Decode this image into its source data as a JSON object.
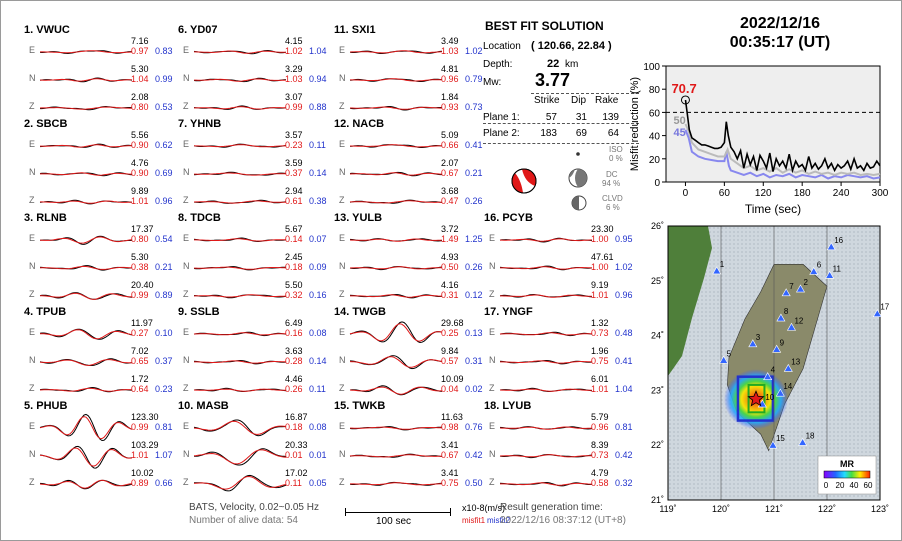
{
  "stations": [
    {
      "num": "1.",
      "code": "VWUC",
      "E": {
        "amp": "7.16",
        "m1": "0.97",
        "m2": "0.83"
      },
      "N": {
        "amp": "5.30",
        "m1": "1.04",
        "m2": "0.99"
      },
      "Z": {
        "amp": "2.08",
        "m1": "0.80",
        "m2": "0.53"
      }
    },
    {
      "num": "2.",
      "code": "SBCB",
      "E": {
        "amp": "5.56",
        "m1": "0.90",
        "m2": "0.62"
      },
      "N": {
        "amp": "4.76",
        "m1": "0.90",
        "m2": "0.69"
      },
      "Z": {
        "amp": "9.89",
        "m1": "1.01",
        "m2": "0.96"
      }
    },
    {
      "num": "3.",
      "code": "RLNB",
      "E": {
        "amp": "17.37",
        "m1": "0.80",
        "m2": "0.54"
      },
      "N": {
        "amp": "5.30",
        "m1": "0.38",
        "m2": "0.21"
      },
      "Z": {
        "amp": "20.40",
        "m1": "0.99",
        "m2": "0.89"
      }
    },
    {
      "num": "4.",
      "code": "TPUB",
      "E": {
        "amp": "11.97",
        "m1": "0.27",
        "m2": "0.10"
      },
      "N": {
        "amp": "7.02",
        "m1": "0.65",
        "m2": "0.37"
      },
      "Z": {
        "amp": "1.72",
        "m1": "0.64",
        "m2": "0.23"
      }
    },
    {
      "num": "5.",
      "code": "PHUB",
      "E": {
        "amp": "123.30",
        "m1": "0.99",
        "m2": "0.81"
      },
      "N": {
        "amp": "103.29",
        "m1": "1.01",
        "m2": "1.07"
      },
      "Z": {
        "amp": "10.02",
        "m1": "0.89",
        "m2": "0.66"
      }
    },
    {
      "num": "6.",
      "code": "YD07",
      "E": {
        "amp": "4.15",
        "m1": "1.02",
        "m2": "1.04"
      },
      "N": {
        "amp": "3.29",
        "m1": "1.03",
        "m2": "0.94"
      },
      "Z": {
        "amp": "3.07",
        "m1": "0.99",
        "m2": "0.88"
      }
    },
    {
      "num": "7.",
      "code": "YHNB",
      "E": {
        "amp": "3.57",
        "m1": "0.23",
        "m2": "0.11"
      },
      "N": {
        "amp": "3.59",
        "m1": "0.37",
        "m2": "0.14"
      },
      "Z": {
        "amp": "2.94",
        "m1": "0.61",
        "m2": "0.38"
      }
    },
    {
      "num": "8.",
      "code": "TDCB",
      "E": {
        "amp": "5.67",
        "m1": "0.14",
        "m2": "0.07"
      },
      "N": {
        "amp": "2.45",
        "m1": "0.18",
        "m2": "0.09"
      },
      "Z": {
        "amp": "5.50",
        "m1": "0.32",
        "m2": "0.16"
      }
    },
    {
      "num": "9.",
      "code": "SSLB",
      "E": {
        "amp": "6.49",
        "m1": "0.16",
        "m2": "0.08"
      },
      "N": {
        "amp": "3.63",
        "m1": "0.28",
        "m2": "0.14"
      },
      "Z": {
        "amp": "4.46",
        "m1": "0.26",
        "m2": "0.11"
      }
    },
    {
      "num": "10.",
      "code": "MASB",
      "E": {
        "amp": "16.87",
        "m1": "0.18",
        "m2": "0.08"
      },
      "N": {
        "amp": "20.33",
        "m1": "0.01",
        "m2": "0.01"
      },
      "Z": {
        "amp": "17.02",
        "m1": "0.11",
        "m2": "0.05"
      }
    },
    {
      "num": "11.",
      "code": "SXI1",
      "E": {
        "amp": "3.49",
        "m1": "1.03",
        "m2": "1.02"
      },
      "N": {
        "amp": "4.81",
        "m1": "0.96",
        "m2": "0.79"
      },
      "Z": {
        "amp": "1.84",
        "m1": "0.93",
        "m2": "0.73"
      }
    },
    {
      "num": "12.",
      "code": "NACB",
      "E": {
        "amp": "5.09",
        "m1": "0.66",
        "m2": "0.41"
      },
      "N": {
        "amp": "2.07",
        "m1": "0.67",
        "m2": "0.21"
      },
      "Z": {
        "amp": "3.68",
        "m1": "0.47",
        "m2": "0.26"
      }
    },
    {
      "num": "13.",
      "code": "YULB",
      "E": {
        "amp": "3.72",
        "m1": "1.49",
        "m2": "1.25"
      },
      "N": {
        "amp": "4.93",
        "m1": "0.50",
        "m2": "0.26"
      },
      "Z": {
        "amp": "4.16",
        "m1": "0.31",
        "m2": "0.12"
      }
    },
    {
      "num": "14.",
      "code": "TWGB",
      "E": {
        "amp": "29.68",
        "m1": "0.25",
        "m2": "0.13"
      },
      "N": {
        "amp": "9.84",
        "m1": "0.57",
        "m2": "0.31"
      },
      "Z": {
        "amp": "10.09",
        "m1": "0.04",
        "m2": "0.02"
      }
    },
    {
      "num": "15.",
      "code": "TWKB",
      "E": {
        "amp": "11.63",
        "m1": "0.98",
        "m2": "0.76"
      },
      "N": {
        "amp": "3.41",
        "m1": "0.67",
        "m2": "0.42"
      },
      "Z": {
        "amp": "3.41",
        "m1": "0.75",
        "m2": "0.50"
      }
    },
    {
      "num": "16.",
      "code": "PCYB",
      "E": {
        "amp": "23.30",
        "m1": "1.00",
        "m2": "0.95"
      },
      "N": {
        "amp": "47.61",
        "m1": "1.00",
        "m2": "1.02"
      },
      "Z": {
        "amp": "9.19",
        "m1": "1.01",
        "m2": "0.96"
      }
    },
    {
      "num": "17.",
      "code": "YNGF",
      "E": {
        "amp": "1.32",
        "m1": "0.73",
        "m2": "0.48"
      },
      "N": {
        "amp": "1.96",
        "m1": "0.75",
        "m2": "0.41"
      },
      "Z": {
        "amp": "6.01",
        "m1": "1.01",
        "m2": "1.04"
      }
    },
    {
      "num": "18.",
      "code": "LYUB",
      "E": {
        "amp": "5.79",
        "m1": "0.96",
        "m2": "0.81"
      },
      "N": {
        "amp": "8.39",
        "m1": "0.73",
        "m2": "0.42"
      },
      "Z": {
        "amp": "4.79",
        "m1": "0.58",
        "m2": "0.32"
      }
    }
  ],
  "components": [
    "E",
    "N",
    "Z"
  ],
  "solution": {
    "title": "BEST FIT SOLUTION",
    "location_label": "Location",
    "location_value": "( 120.66, 22.84 )",
    "depth_label": "Depth:",
    "depth_value": "22",
    "depth_unit": "km",
    "mw_label": "Mw:",
    "mw_value": "3.77",
    "headers": [
      "Strike",
      "Dip",
      "Rake"
    ],
    "plane1_label": "Plane 1:",
    "plane1": [
      "57",
      "31",
      "139"
    ],
    "plane2_label": "Plane 2:",
    "plane2": [
      "183",
      "69",
      "64"
    ],
    "iso_label": "ISO",
    "iso_value": "0 %",
    "dc_label": "DC",
    "dc_value": "94 %",
    "clvd_label": "CLVD",
    "clvd_value": "6 %"
  },
  "event": {
    "date": "2022/12/16",
    "time": "00:35:17  (UT)"
  },
  "chart_data": {
    "type": "line",
    "title": "",
    "xlabel": "Time (sec)",
    "ylabel": "Misfit reduction (%)",
    "xlim": [
      -30,
      300
    ],
    "ylim": [
      0,
      100
    ],
    "xticks": [
      0,
      60,
      120,
      180,
      240,
      300
    ],
    "yticks": [
      0,
      20,
      40,
      60,
      80,
      100
    ],
    "threshold": 60,
    "series": [
      {
        "color": "#000000",
        "x": [
          0,
          3,
          6,
          10,
          15,
          20,
          25,
          30,
          35,
          40,
          45,
          50,
          55,
          60,
          63,
          66,
          70,
          75,
          80,
          85,
          90,
          95,
          100,
          105,
          110,
          115,
          120,
          125,
          130,
          135,
          140,
          145,
          150,
          155,
          160,
          165,
          170,
          175,
          180,
          185,
          190,
          195,
          200,
          205,
          210,
          215,
          220,
          225,
          230,
          235,
          240,
          245,
          250,
          255,
          260,
          265,
          270,
          275,
          280,
          285,
          290,
          295,
          300
        ],
        "y": [
          70.7,
          58,
          45,
          38,
          36,
          34,
          32,
          32,
          31,
          30,
          29,
          29,
          30,
          34,
          52,
          40,
          30,
          26,
          20,
          27,
          12,
          24,
          15,
          22,
          10,
          23,
          18,
          12,
          25,
          9,
          20,
          14,
          18,
          12,
          24,
          10,
          18,
          13,
          15,
          10,
          22,
          12,
          16,
          11,
          14,
          20,
          12,
          16,
          10,
          15,
          12,
          14,
          18,
          11,
          20,
          12,
          14,
          10,
          16,
          12,
          13,
          18,
          14
        ]
      },
      {
        "color": "#bbbbbb",
        "x": [
          0,
          5,
          10,
          20,
          30,
          40,
          50,
          60,
          65,
          70,
          80,
          90,
          100,
          110,
          120,
          130,
          140,
          150,
          160,
          170,
          180,
          190,
          200,
          210,
          220,
          230,
          240,
          250,
          260,
          270,
          280,
          290,
          300
        ],
        "y": [
          50,
          44,
          34,
          28,
          26,
          24,
          22,
          22,
          28,
          20,
          16,
          12,
          14,
          10,
          12,
          9,
          12,
          8,
          11,
          8,
          10,
          7,
          9,
          7,
          8,
          6,
          8,
          7,
          8,
          6,
          7,
          6,
          7
        ]
      },
      {
        "color": "#8888ee",
        "x": [
          0,
          5,
          10,
          20,
          30,
          40,
          50,
          60,
          63,
          67,
          70,
          80,
          90,
          100,
          110,
          120,
          130,
          140,
          150,
          160,
          170,
          180,
          190,
          200,
          210,
          220,
          230,
          240,
          250,
          260,
          270,
          280,
          290,
          300
        ],
        "y": [
          45,
          38,
          26,
          22,
          20,
          19,
          18,
          18,
          26,
          14,
          10,
          8,
          6,
          8,
          5,
          7,
          4,
          6,
          5,
          7,
          4,
          6,
          5,
          4,
          6,
          3,
          5,
          4,
          6,
          5,
          4,
          5,
          3,
          4
        ]
      }
    ],
    "annotations": [
      {
        "text": "70.7",
        "x": 0,
        "y": 70.7,
        "color": "#e01818"
      },
      {
        "text": "50",
        "x": 0,
        "y": 50,
        "color": "#999999"
      },
      {
        "text": "45",
        "x": 0,
        "y": 45,
        "color": "#7777dd"
      }
    ]
  },
  "map": {
    "lon_ticks": [
      "119˚",
      "120˚",
      "121˚",
      "122˚",
      "123˚"
    ],
    "lat_ticks": [
      "21˚",
      "22˚",
      "23˚",
      "24˚",
      "25˚",
      "26˚"
    ],
    "stations": [
      {
        "id": "1",
        "lon": 119.92,
        "lat": 25.18
      },
      {
        "id": "2",
        "lon": 121.5,
        "lat": 24.85
      },
      {
        "id": "3",
        "lon": 120.6,
        "lat": 23.85
      },
      {
        "id": "4",
        "lon": 120.88,
        "lat": 23.25
      },
      {
        "id": "5",
        "lon": 120.05,
        "lat": 23.55
      },
      {
        "id": "6",
        "lon": 121.75,
        "lat": 25.17
      },
      {
        "id": "7",
        "lon": 121.23,
        "lat": 24.78
      },
      {
        "id": "8",
        "lon": 121.13,
        "lat": 24.32
      },
      {
        "id": "9",
        "lon": 121.05,
        "lat": 23.75
      },
      {
        "id": "10",
        "lon": 120.78,
        "lat": 22.75
      },
      {
        "id": "11",
        "lon": 122.05,
        "lat": 25.1
      },
      {
        "id": "12",
        "lon": 121.33,
        "lat": 24.15
      },
      {
        "id": "13",
        "lon": 121.27,
        "lat": 23.4
      },
      {
        "id": "14",
        "lon": 121.12,
        "lat": 22.95
      },
      {
        "id": "15",
        "lon": 120.98,
        "lat": 22.0
      },
      {
        "id": "16",
        "lon": 122.08,
        "lat": 25.62
      },
      {
        "id": "17",
        "lon": 122.95,
        "lat": 24.4
      },
      {
        "id": "18",
        "lon": 121.54,
        "lat": 22.05
      }
    ],
    "epicenter": {
      "lon": 120.66,
      "lat": 22.84
    },
    "legend_title": "MR",
    "legend_ticks": [
      "0",
      "20",
      "40",
      "60"
    ]
  },
  "footer": {
    "network": "BATS, Velocity, 0.02~0.05 Hz",
    "alive": "Number of alive data: 54",
    "scale_label": "100 sec",
    "units": "x10-8(m/s)",
    "misfit1": "misfit1",
    "misfit2": "misfit2",
    "result_label": "Result generation time:",
    "result_time": "2022/12/16 08:37:12 (UT+8)"
  }
}
